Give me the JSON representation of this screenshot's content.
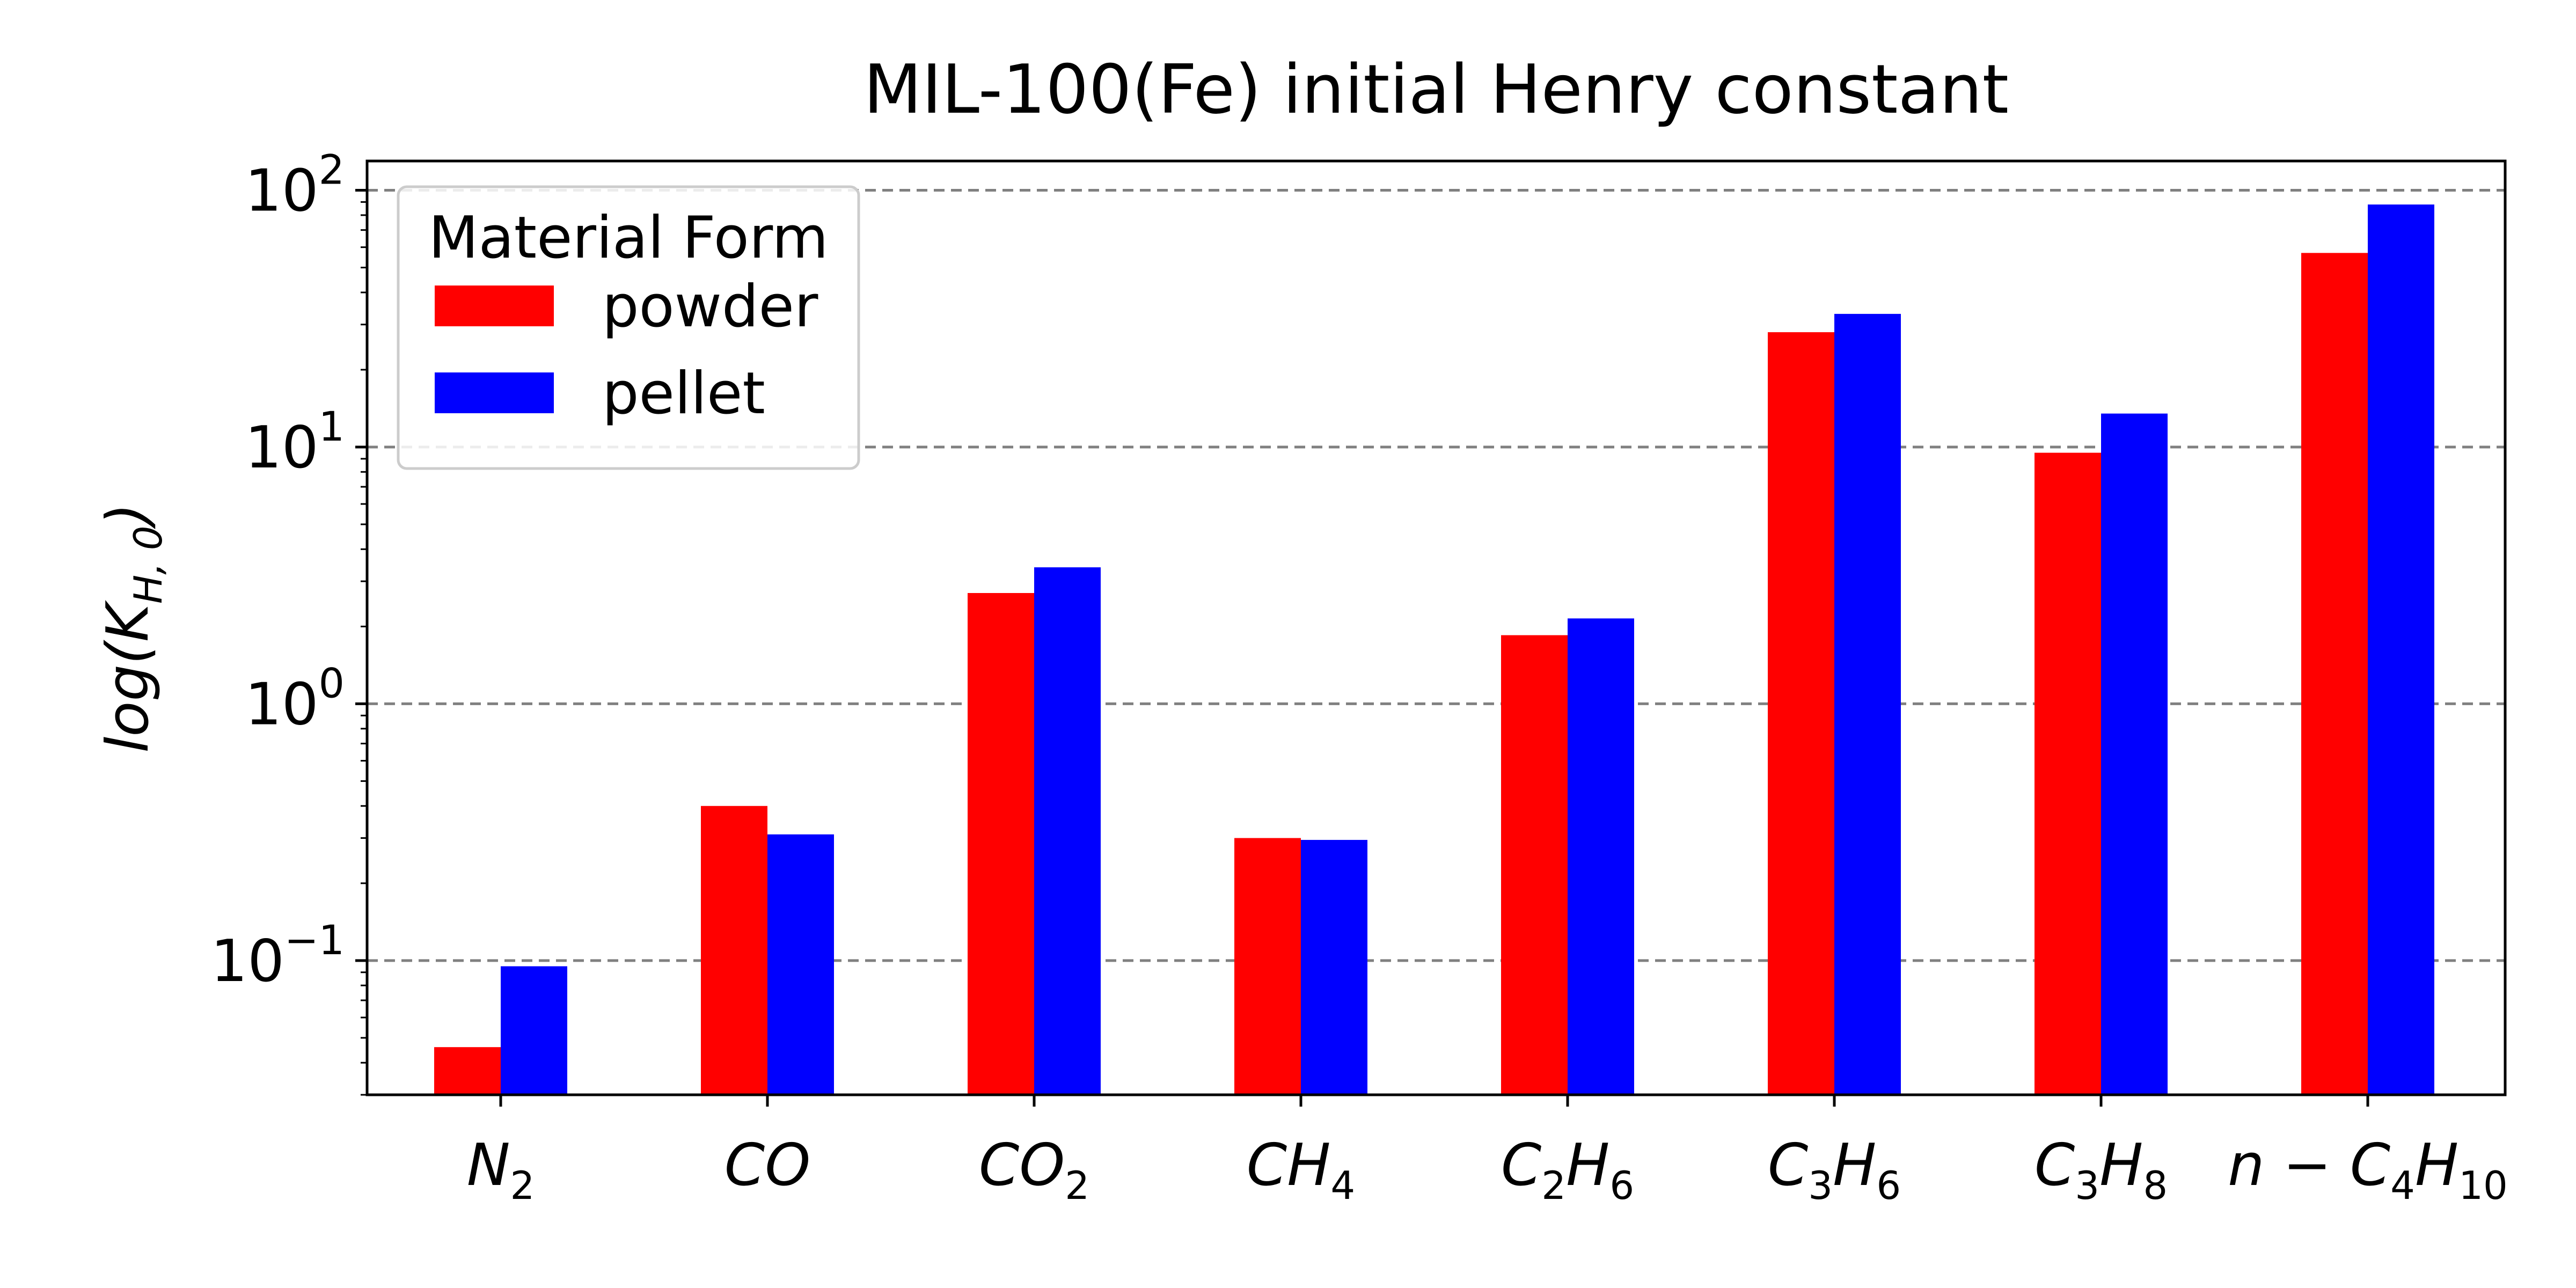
{
  "chart_data": {
    "type": "bar",
    "title": "MIL-100(Fe) initial Henry constant",
    "ylabel": "log(K_{H,0})",
    "ylabel_parts": {
      "main": "log(K",
      "sub": "H, 0",
      "close": ")"
    },
    "yscale": "log",
    "ylim": [
      0.03,
      130
    ],
    "yticks": [
      {
        "value": 0.1,
        "base": "10",
        "exp": "−1"
      },
      {
        "value": 1,
        "base": "10",
        "exp": "0"
      },
      {
        "value": 10,
        "base": "10",
        "exp": "1"
      },
      {
        "value": 100,
        "base": "10",
        "exp": "2"
      }
    ],
    "grid": "y-dashed",
    "categories": [
      "N2",
      "CO",
      "CO2",
      "CH4",
      "C2H6",
      "C3H6",
      "C3H8",
      "n-C4H10"
    ],
    "category_labels": [
      [
        {
          "t": "N"
        },
        {
          "s": "2"
        }
      ],
      [
        {
          "t": "CO"
        }
      ],
      [
        {
          "t": "CO"
        },
        {
          "s": "2"
        }
      ],
      [
        {
          "t": "CH"
        },
        {
          "s": "4"
        }
      ],
      [
        {
          "t": "C"
        },
        {
          "s": "2"
        },
        {
          "t": "H"
        },
        {
          "s": "6"
        }
      ],
      [
        {
          "t": "C"
        },
        {
          "s": "3"
        },
        {
          "t": "H"
        },
        {
          "s": "6"
        }
      ],
      [
        {
          "t": "C"
        },
        {
          "s": "3"
        },
        {
          "t": "H"
        },
        {
          "s": "8"
        }
      ],
      [
        {
          "t": "n − C"
        },
        {
          "s": "4"
        },
        {
          "t": "H"
        },
        {
          "s": "10"
        }
      ]
    ],
    "series": [
      {
        "name": "powder",
        "color": "#ff0000",
        "values": [
          0.046,
          0.4,
          2.7,
          0.3,
          1.85,
          28.0,
          9.5,
          57.0
        ]
      },
      {
        "name": "pellet",
        "color": "#0000ff",
        "values": [
          0.095,
          0.31,
          3.4,
          0.295,
          2.15,
          33.0,
          13.5,
          88.0
        ]
      }
    ],
    "legend": {
      "title": "Material Form",
      "placement": "top-left"
    }
  }
}
